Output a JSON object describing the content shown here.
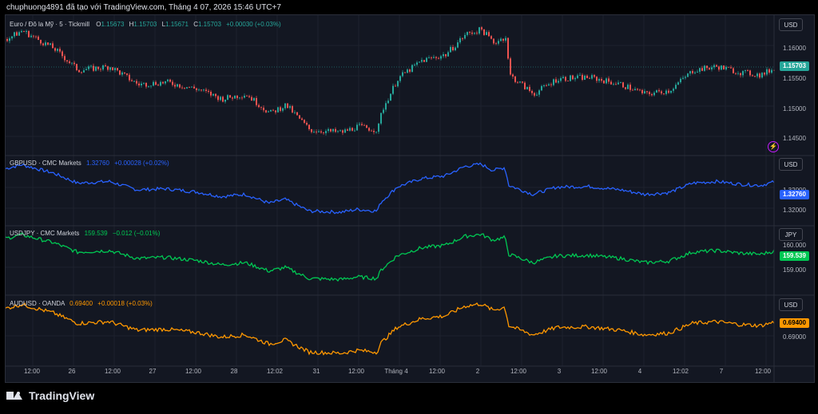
{
  "header": {
    "text": "chuphuong4891 đã tạo với TradingView.com, Tháng 4 07, 2026 15:46 UTC+7"
  },
  "colors": {
    "up": "#26a69a",
    "down": "#ef5350",
    "gbp": "#2962ff",
    "jpy": "#00c853",
    "aud": "#ff9800"
  },
  "panes": [
    {
      "id": "eurusd",
      "title": "Euro / Đô la Mỹ · 5 · Tickmill",
      "legend": {
        "o_label": "O",
        "o": "1.15673",
        "h_label": "H",
        "h": "1.15703",
        "l_label": "L",
        "l": "1.15671",
        "c_label": "C",
        "c": "1.15703",
        "chg": "+0.00030 (+0.03%)"
      },
      "currency": "USD",
      "last_price": "1.15703",
      "ticks": [
        "1.16000",
        "1.15500",
        "1.15000",
        "1.14500"
      ]
    },
    {
      "id": "gbpusd",
      "title": "GBPUSD · CMC Markets",
      "value": "1.32760",
      "chg": "+0.00028 (+0.02%)",
      "currency": "USD",
      "last_price": "1.32760",
      "ticks": [
        "1.32000",
        "1.32000"
      ]
    },
    {
      "id": "usdjpy",
      "title": "USDJPY · CMC Markets",
      "value": "159.539",
      "chg": "−0.012 (−0.01%)",
      "currency": "JPY",
      "last_price": "159.539",
      "ticks": [
        "160.000",
        "159.000"
      ]
    },
    {
      "id": "audusd",
      "title": "AUDUSD · OANDA",
      "value": "0.69400",
      "chg": "+0.00018 (+0.03%)",
      "currency": "USD",
      "last_price": "0.69400",
      "ticks": [
        "0.69000"
      ]
    }
  ],
  "x_axis": [
    "12:00",
    "26",
    "12:00",
    "27",
    "12:00",
    "28",
    "12:02",
    "31",
    "12:00",
    "Tháng 4",
    "12:00",
    "2",
    "12:00",
    "3",
    "12:00",
    "4",
    "12:02",
    "7",
    "12:00"
  ],
  "brand": "TradingView"
}
